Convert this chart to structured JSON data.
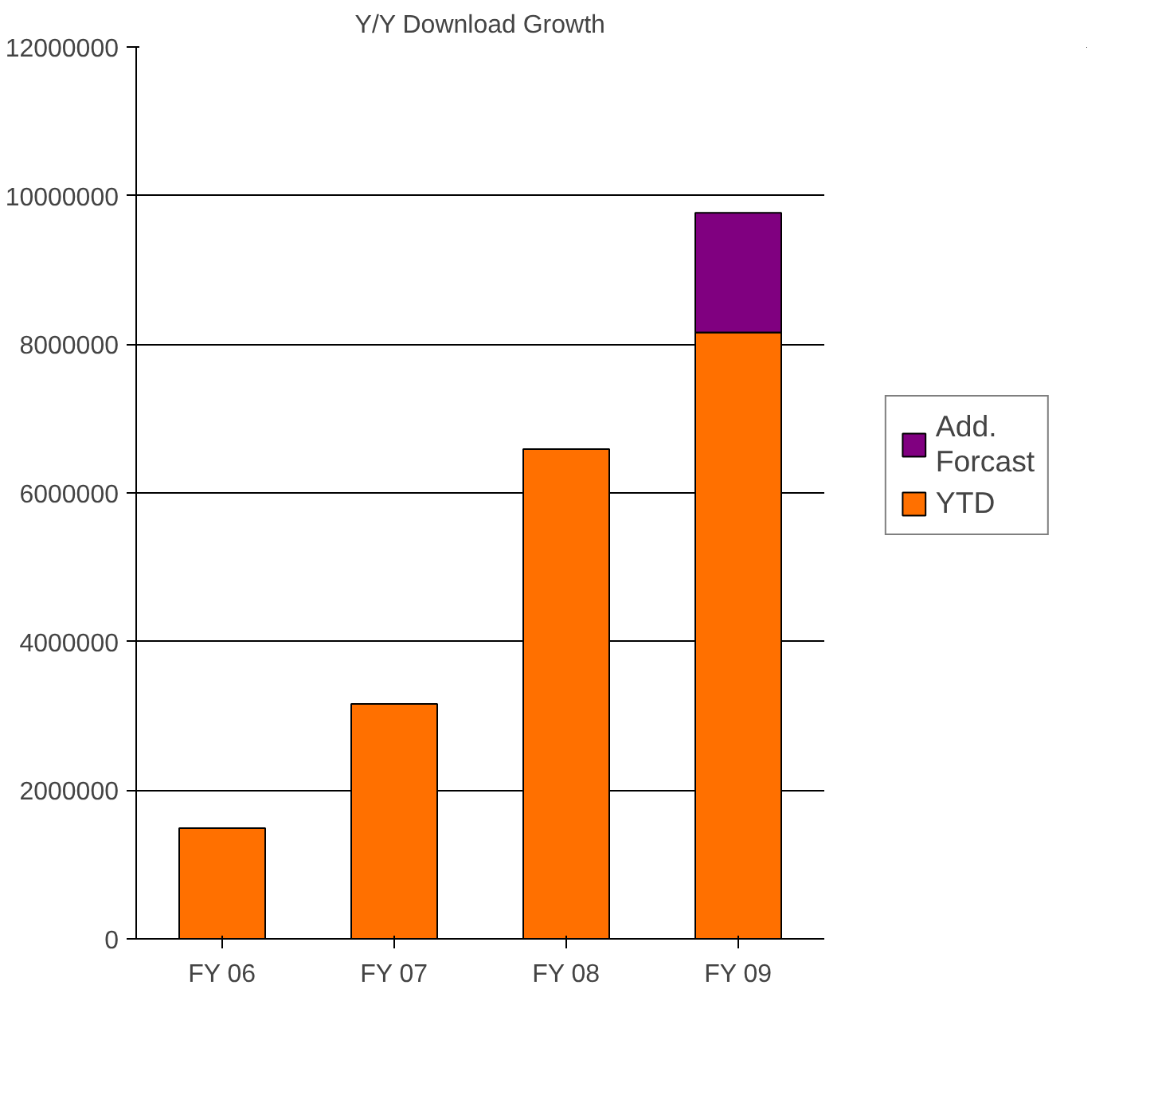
{
  "chart_data": {
    "type": "bar",
    "title": "Y/Y Download Growth",
    "stacked": true,
    "categories": [
      "FY 06",
      "FY 07",
      "FY 08",
      "FY 09"
    ],
    "series": [
      {
        "name": "YTD",
        "color": "#ff7000",
        "values": [
          1490000,
          3160000,
          6590000,
          8160000
        ]
      },
      {
        "name": "Add. Forcast",
        "color": "#800080",
        "values": [
          null,
          null,
          null,
          1610000
        ]
      }
    ],
    "ylim": [
      0,
      12000000
    ],
    "yticks": [
      0,
      2000000,
      4000000,
      6000000,
      8000000,
      10000000,
      12000000
    ],
    "grid": "y",
    "legend": "right"
  }
}
